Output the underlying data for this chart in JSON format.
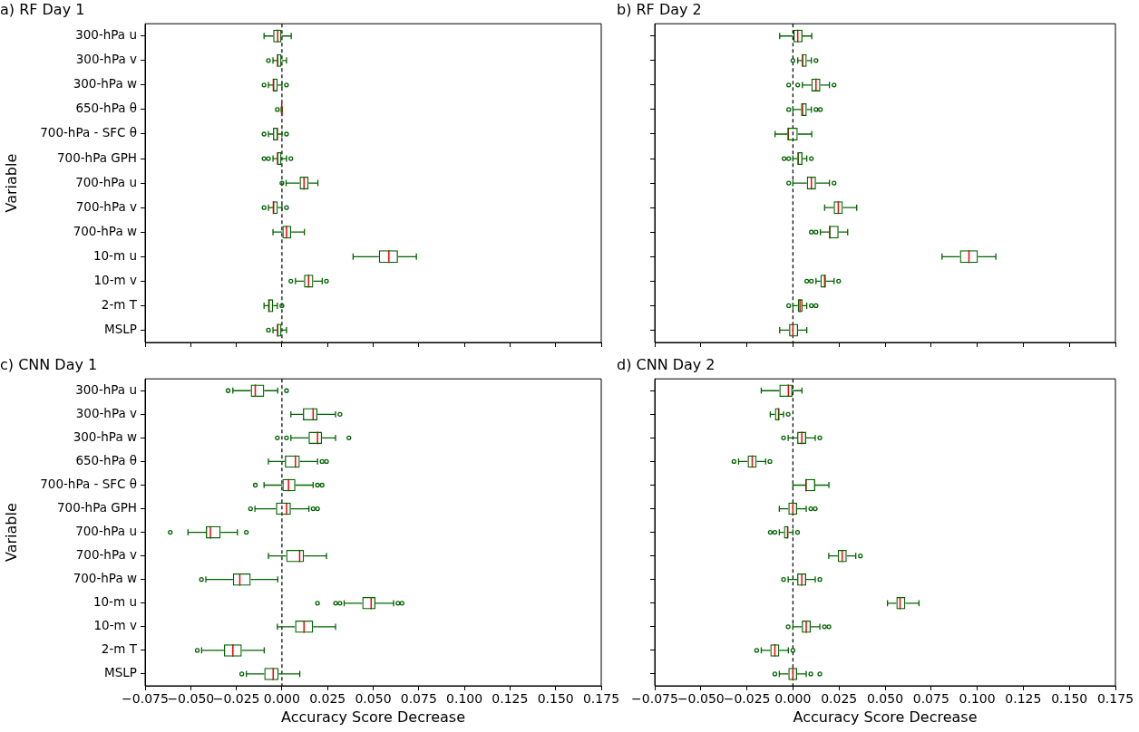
{
  "chart_data": [
    {
      "type": "box",
      "orientation": "horizontal",
      "title": "a) RF Day 1",
      "ylabel": "Variable",
      "tick_labels": "y",
      "categories": [
        "300-hPa u",
        "300-hPa v",
        "300-hPa w",
        "650-hPa θ",
        "700-hPa - SFC θ",
        "700-hPa GPH",
        "700-hPa u",
        "700-hPa v",
        "700-hPa w",
        "10-m u",
        "10-m v",
        "2-m T",
        "MSLP"
      ],
      "xlim": [
        -0.075,
        0.175
      ],
      "xticks": [
        -0.075,
        -0.05,
        -0.025,
        0,
        0.025,
        0.05,
        0.075,
        0.1,
        0.125,
        0.15,
        0.175
      ],
      "ref_lines": [
        {
          "axis": "x",
          "value": 0,
          "color": "#000000",
          "line_style": "dashed"
        }
      ],
      "series": [
        {
          "color": "#006400",
          "boxes": [
            {
              "low": -0.0098,
              "q1": -0.0048,
              "median": -0.0023,
              "q3": 0,
              "high": 0.0051
            },
            {
              "low": -0.0049,
              "q1": -0.0026,
              "median": -0.0024,
              "q3": 0,
              "high": 0.0025,
              "outliers": [
                -0.0074
              ]
            },
            {
              "low": -0.0074,
              "q1": -0.0049,
              "median": -0.0047,
              "q3": -0.0023,
              "high": 0,
              "outliers": [
                -0.0098,
                0.0025
              ]
            },
            {
              "low": -0.0004,
              "q1": -0.0002,
              "median": -0.0001,
              "q3": 0,
              "high": 0.0002,
              "outliers": [
                -0.0025
              ]
            },
            {
              "low": -0.0074,
              "q1": -0.0049,
              "median": -0.0025,
              "q3": -0.0023,
              "high": 0,
              "outliers": [
                -0.0098,
                0.0025
              ]
            },
            {
              "low": -0.0049,
              "q1": -0.0026,
              "median": -0.0024,
              "q3": 0,
              "high": 0.0025,
              "outliers": [
                -0.0098,
                -0.0074,
                0.0049
              ]
            },
            {
              "low": 0.0023,
              "q1": 0.0097,
              "median": 0.0121,
              "q3": 0.0146,
              "high": 0.0197,
              "outliers": [
                0
              ]
            },
            {
              "low": -0.0074,
              "q1": -0.0049,
              "median": -0.0047,
              "q3": -0.0023,
              "high": 0,
              "outliers": [
                -0.0098,
                0.0025
              ]
            },
            {
              "low": -0.0049,
              "q1": 0,
              "median": 0.0025,
              "q3": 0.0051,
              "high": 0.0123
            },
            {
              "low": 0.039,
              "q1": 0.0531,
              "median": 0.0586,
              "q3": 0.0636,
              "high": 0.0737
            },
            {
              "low": 0.0074,
              "q1": 0.0121,
              "median": 0.0146,
              "q3": 0.0172,
              "high": 0.0221,
              "outliers": [
                0.0049,
                0.0244
              ]
            },
            {
              "low": -0.0098,
              "q1": -0.0074,
              "median": -0.0072,
              "q3": -0.0048,
              "high": -0.0025,
              "outliers": [
                0
              ]
            },
            {
              "low": -0.0049,
              "q1": -0.0026,
              "median": -0.0024,
              "q3": 0,
              "high": 0.0025,
              "outliers": [
                -0.0074
              ]
            }
          ]
        }
      ]
    },
    {
      "type": "box",
      "orientation": "horizontal",
      "title": "b) RF Day 2",
      "tick_labels": false,
      "categories": [
        null,
        null,
        null,
        null,
        null,
        null,
        null,
        null,
        null,
        null,
        null,
        null,
        null
      ],
      "xlim": [
        -0.075,
        0.175
      ],
      "xticks": [
        -0.075,
        -0.05,
        -0.025,
        0,
        0.025,
        0.05,
        0.075,
        0.1,
        0.125,
        0.15,
        0.175
      ],
      "ref_lines": [
        {
          "axis": "x",
          "value": 0,
          "color": "#000000",
          "line_style": "dashed"
        }
      ],
      "series": [
        {
          "color": "#006400",
          "boxes": [
            {
              "low": -0.0072,
              "q1": 0,
              "median": 0.0026,
              "q3": 0.0052,
              "high": 0.0102
            },
            {
              "low": 0.0026,
              "q1": 0.0049,
              "median": 0.0052,
              "q3": 0.0075,
              "high": 0.01,
              "outliers": [
                0,
                0.0125
              ]
            },
            {
              "low": 0.0051,
              "q1": 0.01,
              "median": 0.0125,
              "q3": 0.0149,
              "high": 0.0198,
              "outliers": [
                -0.0023,
                0.0026,
                0.0223
              ]
            },
            {
              "low": 0,
              "q1": 0.0044,
              "median": 0.0052,
              "q3": 0.0075,
              "high": 0.01,
              "outliers": [
                -0.0023,
                0.0125,
                0.0149
              ]
            },
            {
              "low": -0.0097,
              "q1": -0.003,
              "median": -0.0025,
              "q3": 0.0026,
              "high": 0.0102
            },
            {
              "low": 0,
              "q1": 0.0025,
              "median": 0.0028,
              "q3": 0.0052,
              "high": 0.0075,
              "outliers": [
                -0.0048,
                -0.0023,
                0.01
              ]
            },
            {
              "low": 0,
              "q1": 0.0075,
              "median": 0.01,
              "q3": 0.0125,
              "high": 0.0198,
              "outliers": [
                -0.0023,
                0.0223
              ]
            },
            {
              "low": 0.0172,
              "q1": 0.0221,
              "median": 0.0246,
              "q3": 0.0271,
              "high": 0.0346
            },
            {
              "low": 0.0149,
              "q1": 0.0197,
              "median": 0.0199,
              "q3": 0.0248,
              "high": 0.0297,
              "outliers": [
                0.01,
                0.0125
              ]
            },
            {
              "low": 0.0809,
              "q1": 0.0906,
              "median": 0.0955,
              "q3": 0.1004,
              "high": 0.1101
            },
            {
              "low": 0.0125,
              "q1": 0.0149,
              "median": 0.0172,
              "q3": 0.0179,
              "high": 0.0223,
              "outliers": [
                0.0075,
                0.01,
                0.0248
              ]
            },
            {
              "low": 0,
              "q1": 0.0026,
              "median": 0.0038,
              "q3": 0.0052,
              "high": 0.0075,
              "outliers": [
                -0.0023,
                0.01,
                0.0125
              ]
            },
            {
              "low": -0.0072,
              "q1": -0.0021,
              "median": 0,
              "q3": 0.0028,
              "high": 0.0075
            }
          ]
        }
      ]
    },
    {
      "type": "box",
      "orientation": "horizontal",
      "title": "c) CNN Day 1",
      "xlabel": "Accuracy Score Decrease",
      "ylabel": "Variable",
      "categories": [
        "300-hPa u",
        "300-hPa v",
        "300-hPa w",
        "650-hPa θ",
        "700-hPa - SFC θ",
        "700-hPa GPH",
        "700-hPa u",
        "700-hPa v",
        "700-hPa w",
        "10-m u",
        "10-m v",
        "2-m T",
        "MSLP"
      ],
      "xlim": [
        -0.075,
        0.175
      ],
      "xticks": [
        {
          "value": -0.075,
          "label": "−0.075"
        },
        {
          "value": -0.05,
          "label": "−0.050"
        },
        {
          "value": -0.025,
          "label": "−0.025"
        },
        {
          "value": 0,
          "label": "0.000"
        },
        {
          "value": 0.025,
          "label": "0.025"
        },
        {
          "value": 0.05,
          "label": "0.050"
        },
        {
          "value": 0.075,
          "label": "0.075"
        },
        {
          "value": 0.1,
          "label": "0.100"
        },
        {
          "value": 0.125,
          "label": "0.125"
        },
        {
          "value": 0.15,
          "label": "0.150"
        },
        {
          "value": 0.175,
          "label": "0.175"
        }
      ],
      "ref_lines": [
        {
          "axis": "x",
          "value": 0,
          "color": "#000000",
          "line_style": "dashed"
        }
      ],
      "series": [
        {
          "color": "#006400",
          "boxes": [
            {
              "low": -0.0269,
              "q1": -0.0171,
              "median": -0.0146,
              "q3": -0.0097,
              "high": -0.0023,
              "outliers": [
                -0.0295,
                0.0025
              ]
            },
            {
              "low": 0.0049,
              "q1": 0.0115,
              "median": 0.0171,
              "q3": 0.0195,
              "high": 0.0294,
              "outliers": [
                0.0318
              ]
            },
            {
              "low": 0.0049,
              "q1": 0.0146,
              "median": 0.0195,
              "q3": 0.022,
              "high": 0.0294,
              "outliers": [
                -0.0025,
                0.0025,
                0.0367
              ]
            },
            {
              "low": -0.0074,
              "q1": 0.0016,
              "median": 0.0074,
              "q3": 0.0098,
              "high": 0.0195,
              "outliers": [
                0.022,
                0.0244
              ]
            },
            {
              "low": -0.0098,
              "q1": 0,
              "median": 0.0036,
              "q3": 0.0074,
              "high": 0.0171,
              "outliers": [
                -0.0146,
                0.0195,
                0.022
              ]
            },
            {
              "low": -0.0148,
              "q1": -0.0033,
              "median": 0.0025,
              "q3": 0.0049,
              "high": 0.0148,
              "outliers": [
                -0.0172,
                0.0171,
                0.0195
              ]
            },
            {
              "low": -0.0515,
              "q1": -0.0417,
              "median": -0.0392,
              "q3": -0.0336,
              "high": -0.0244,
              "outliers": [
                -0.0612,
                -0.0195
              ]
            },
            {
              "low": -0.0074,
              "q1": 0.0023,
              "median": 0.0097,
              "q3": 0.0121,
              "high": 0.0244
            },
            {
              "low": -0.0417,
              "q1": -0.0269,
              "median": -0.0231,
              "q3": -0.0171,
              "high": -0.0023,
              "outliers": [
                -0.0441
              ]
            },
            {
              "low": 0.0341,
              "q1": 0.044,
              "median": 0.0489,
              "q3": 0.0513,
              "high": 0.0612,
              "outliers": [
                0.0195,
                0.0294,
                0.0318,
                0.0636,
                0.0658
              ]
            },
            {
              "low": -0.0025,
              "q1": 0.0072,
              "median": 0.0121,
              "q3": 0.0171,
              "high": 0.0294
            },
            {
              "low": -0.044,
              "q1": -0.0318,
              "median": -0.0269,
              "q3": -0.022,
              "high": -0.0097,
              "outliers": [
                -0.0464
              ]
            },
            {
              "low": -0.0195,
              "q1": -0.0097,
              "median": -0.0048,
              "q3": -0.0018,
              "high": 0.0098,
              "outliers": [
                -0.022
              ]
            }
          ]
        }
      ]
    },
    {
      "type": "box",
      "orientation": "horizontal",
      "title": "d) CNN Day 2",
      "xlabel": "Accuracy Score Decrease",
      "tick_labels": "x",
      "categories": [
        null,
        null,
        null,
        null,
        null,
        null,
        null,
        null,
        null,
        null,
        null,
        null,
        null
      ],
      "xlim": [
        -0.075,
        0.175
      ],
      "xticks": [
        {
          "value": -0.075,
          "label": "−0.075"
        },
        {
          "value": -0.05,
          "label": "−0.050"
        },
        {
          "value": -0.025,
          "label": "−0.025"
        },
        {
          "value": 0,
          "label": "0.000"
        },
        {
          "value": 0.025,
          "label": "0.025"
        },
        {
          "value": 0.05,
          "label": "0.050"
        },
        {
          "value": 0.075,
          "label": "0.075"
        },
        {
          "value": 0.1,
          "label": "0.100"
        },
        {
          "value": 0.125,
          "label": "0.125"
        },
        {
          "value": 0.15,
          "label": "0.150"
        },
        {
          "value": 0.175,
          "label": "0.175"
        }
      ],
      "ref_lines": [
        {
          "axis": "x",
          "value": 0,
          "color": "#000000",
          "line_style": "dashed"
        }
      ],
      "series": [
        {
          "color": "#006400",
          "boxes": [
            {
              "low": -0.0172,
              "q1": -0.0074,
              "median": -0.0025,
              "q3": 0,
              "high": 0.0049
            },
            {
              "low": -0.0123,
              "q1": -0.0098,
              "median": -0.0078,
              "q3": -0.0073,
              "high": -0.0051,
              "outliers": [
                -0.0026
              ]
            },
            {
              "low": -0.0026,
              "q1": 0.0023,
              "median": 0.0048,
              "q3": 0.0072,
              "high": 0.0121,
              "outliers": [
                -0.0051,
                0.0146
              ]
            },
            {
              "low": -0.0295,
              "q1": -0.0246,
              "median": -0.0221,
              "q3": -0.0197,
              "high": -0.0148,
              "outliers": [
                -0.032,
                -0.0125
              ]
            },
            {
              "low": 0,
              "q1": 0.0067,
              "median": 0.0071,
              "q3": 0.0121,
              "high": 0.0195
            },
            {
              "low": -0.0074,
              "q1": -0.0025,
              "median": 0,
              "q3": 0.0023,
              "high": 0.0072,
              "outliers": [
                0.0097,
                0.0121
              ]
            },
            {
              "low": -0.0074,
              "q1": -0.0049,
              "median": -0.0029,
              "q3": -0.0024,
              "high": 0,
              "outliers": [
                -0.0123,
                -0.0098,
                0.0025
              ]
            },
            {
              "low": 0.0194,
              "q1": 0.0243,
              "median": 0.0267,
              "q3": 0.0292,
              "high": 0.0341,
              "outliers": [
                0.0366
              ]
            },
            {
              "low": -0.0026,
              "q1": 0.0023,
              "median": 0.0048,
              "q3": 0.0072,
              "high": 0.0121,
              "outliers": [
                -0.0051,
                0.0146
              ]
            },
            {
              "low": 0.0513,
              "q1": 0.0561,
              "median": 0.0581,
              "q3": 0.061,
              "high": 0.0684
            },
            {
              "low": 0,
              "q1": 0.0048,
              "median": 0.0072,
              "q3": 0.0097,
              "high": 0.0146,
              "outliers": [
                -0.0026,
                0.0171,
                0.0195
              ]
            },
            {
              "low": -0.0172,
              "q1": -0.0123,
              "median": -0.0098,
              "q3": -0.0074,
              "high": -0.0025,
              "outliers": [
                -0.0197,
                0
              ]
            },
            {
              "low": -0.0074,
              "q1": -0.0025,
              "median": 0,
              "q3": 0.0023,
              "high": 0.0072,
              "outliers": [
                -0.0098,
                0.0097,
                0.0146
              ]
            }
          ]
        }
      ]
    }
  ]
}
